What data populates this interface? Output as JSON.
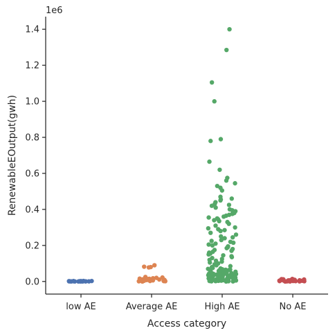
{
  "chart_data": {
    "type": "scatter",
    "title": "",
    "xlabel": "Access category",
    "ylabel": "RenewableEOutput(gwh)",
    "y_offset_label": "1e6",
    "categories": [
      "low AE",
      "Average AE",
      "High AE",
      "No AE"
    ],
    "y_tick_labels": [
      "0.0",
      "0.2",
      "0.4",
      "0.6",
      "0.8",
      "1.0",
      "1.2",
      "1.4"
    ],
    "y_tick_values": [
      0,
      200000,
      400000,
      600000,
      800000,
      1000000,
      1200000,
      1400000
    ],
    "ylim": [
      -70000,
      1470000
    ],
    "grid": false,
    "colors": [
      "#4c72b0",
      "#dd8452",
      "#55a868",
      "#c44e52"
    ],
    "series": [
      {
        "category": "low AE",
        "values": [
          0,
          200,
          500,
          800,
          1200,
          1500,
          2000,
          2500,
          3000,
          0,
          100,
          400,
          700,
          1000,
          1800,
          2200,
          600,
          300,
          900,
          1300
        ]
      },
      {
        "category": "Average AE",
        "values": [
          0,
          1000,
          2000,
          3000,
          5000,
          7000,
          9000,
          12000,
          15000,
          18000,
          20000,
          25000,
          500,
          1500,
          2500,
          4000,
          6000,
          8000,
          10000,
          11000,
          13000,
          14000,
          16000,
          3500,
          4500,
          22000,
          80000,
          82000,
          90000,
          78000
        ]
      },
      {
        "category": "High AE",
        "values": [
          1400000,
          1285000,
          1105000,
          1000000,
          790000,
          780000,
          665000,
          620000,
          575000,
          560000,
          545000,
          530000,
          520000,
          505000,
          470000,
          460000,
          455000,
          450000,
          440000,
          430000,
          425000,
          420000,
          410000,
          400000,
          395000,
          390000,
          380000,
          375000,
          370000,
          365000,
          360000,
          355000,
          350000,
          345000,
          340000,
          335000,
          330000,
          320000,
          310000,
          300000,
          295000,
          290000,
          285000,
          280000,
          270000,
          260000,
          250000,
          245000,
          240000,
          230000,
          225000,
          220000,
          215000,
          210000,
          205000,
          200000,
          195000,
          190000,
          185000,
          180000,
          175000,
          170000,
          165000,
          160000,
          155000,
          150000,
          145000,
          140000,
          135000,
          130000,
          125000,
          120000,
          115000,
          110000,
          105000,
          100000,
          95000,
          90000,
          85000,
          80000,
          75000,
          70000,
          65000,
          60000,
          55000,
          50000,
          45000,
          40000,
          35000,
          30000,
          25000,
          20000,
          15000,
          10000,
          5000,
          0,
          2000,
          8000,
          12000,
          18000,
          22000,
          28000,
          32000,
          38000,
          42000,
          48000,
          52000,
          58000,
          62000,
          3000,
          7000,
          11000,
          1000,
          4000,
          6000,
          9000,
          13000,
          16000,
          19000,
          21000,
          24000,
          27000,
          29000,
          31000,
          34000,
          36000,
          39000,
          41000,
          44000,
          46000,
          49000,
          51000,
          54000,
          56000,
          59000,
          61000,
          64000,
          66000,
          68000,
          72000,
          500,
          1500,
          2500,
          3500,
          4500,
          5500,
          6500,
          7500,
          8500,
          9500,
          10500,
          11500,
          14000,
          17000,
          23000,
          26000,
          33000,
          37000,
          43000,
          47000
        ]
      },
      {
        "category": "No AE",
        "values": [
          0,
          500,
          1000,
          1500,
          2000,
          3000,
          4000,
          5000,
          6000,
          7000,
          8000,
          9000,
          10000,
          12000,
          14000,
          200,
          800,
          2500,
          3500,
          4500,
          5500,
          6500,
          7500,
          8500,
          11000,
          13000,
          100,
          600,
          1200,
          2200
        ]
      }
    ]
  }
}
